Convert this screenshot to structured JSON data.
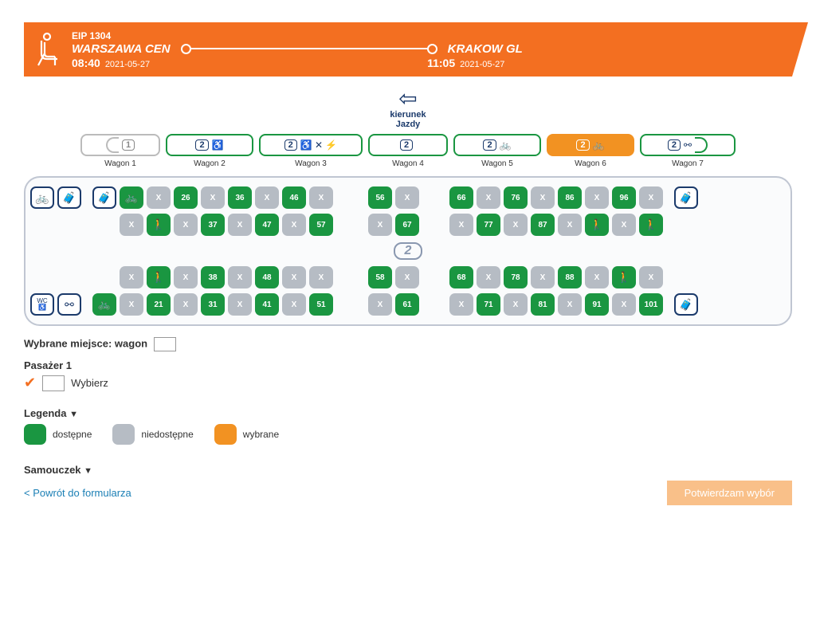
{
  "header": {
    "train": "EIP 1304",
    "origin": "WARSZAWA CEN",
    "dest": "KRAKOW GL",
    "dep_time": "08:40",
    "dep_date": "2021-05-27",
    "arr_time": "11:05",
    "arr_date": "2021-05-27"
  },
  "direction": {
    "line1": "kierunek",
    "line2": "Jazdy"
  },
  "wagons": [
    {
      "label": "Wagon 1",
      "cls": "1",
      "icons": ""
    },
    {
      "label": "Wagon 2",
      "cls": "2",
      "icons": "♿"
    },
    {
      "label": "Wagon 3",
      "cls": "2",
      "icons": "♿ ✕ ⚡"
    },
    {
      "label": "Wagon 4",
      "cls": "2",
      "icons": ""
    },
    {
      "label": "Wagon 5",
      "cls": "2",
      "icons": "🚲"
    },
    {
      "label": "Wagon 6",
      "cls": "2",
      "icons": "🚲"
    },
    {
      "label": "Wagon 7",
      "cls": "2",
      "icons": "⚯"
    }
  ],
  "selected_wagon_index": 5,
  "seats": {
    "row1": [
      {
        "t": "cap",
        "i": "🚲"
      },
      {
        "t": "cap",
        "i": "🧳"
      },
      {
        "t": "sp"
      },
      {
        "t": "cap",
        "i": "🧳"
      },
      {
        "t": "a",
        "i": "🚲"
      },
      {
        "t": "x"
      },
      {
        "t": "a",
        "n": "26"
      },
      {
        "t": "x"
      },
      {
        "t": "a",
        "n": "36"
      },
      {
        "t": "x"
      },
      {
        "t": "a",
        "n": "46"
      },
      {
        "t": "x"
      },
      {
        "t": "gap"
      },
      {
        "t": "a",
        "n": "56"
      },
      {
        "t": "x"
      },
      {
        "t": "e"
      },
      {
        "t": "a",
        "n": "66"
      },
      {
        "t": "x"
      },
      {
        "t": "a",
        "n": "76"
      },
      {
        "t": "x"
      },
      {
        "t": "a",
        "n": "86"
      },
      {
        "t": "x"
      },
      {
        "t": "a",
        "n": "96"
      },
      {
        "t": "x"
      },
      {
        "t": "sp"
      },
      {
        "t": "cap",
        "i": "🧳"
      }
    ],
    "row2": [
      {
        "t": "e"
      },
      {
        "t": "e"
      },
      {
        "t": "sp"
      },
      {
        "t": "e"
      },
      {
        "t": "x"
      },
      {
        "t": "a",
        "i": "🚶"
      },
      {
        "t": "x"
      },
      {
        "t": "a",
        "n": "37"
      },
      {
        "t": "x"
      },
      {
        "t": "a",
        "n": "47"
      },
      {
        "t": "x"
      },
      {
        "t": "a",
        "n": "57"
      },
      {
        "t": "gap"
      },
      {
        "t": "x"
      },
      {
        "t": "a",
        "n": "67"
      },
      {
        "t": "e"
      },
      {
        "t": "x"
      },
      {
        "t": "a",
        "n": "77"
      },
      {
        "t": "x"
      },
      {
        "t": "a",
        "n": "87"
      },
      {
        "t": "x"
      },
      {
        "t": "a",
        "i": "🚶"
      },
      {
        "t": "x"
      },
      {
        "t": "a",
        "i": "🚶"
      },
      {
        "t": "sp"
      },
      {
        "t": "e"
      }
    ],
    "row3": [
      {
        "t": "e"
      },
      {
        "t": "e"
      },
      {
        "t": "sp"
      },
      {
        "t": "e"
      },
      {
        "t": "x"
      },
      {
        "t": "a",
        "i": "🚶"
      },
      {
        "t": "x"
      },
      {
        "t": "a",
        "n": "38"
      },
      {
        "t": "x"
      },
      {
        "t": "a",
        "n": "48"
      },
      {
        "t": "x"
      },
      {
        "t": "x"
      },
      {
        "t": "gap"
      },
      {
        "t": "a",
        "n": "58"
      },
      {
        "t": "x"
      },
      {
        "t": "e"
      },
      {
        "t": "a",
        "n": "68"
      },
      {
        "t": "x"
      },
      {
        "t": "a",
        "n": "78"
      },
      {
        "t": "x"
      },
      {
        "t": "a",
        "n": "88"
      },
      {
        "t": "x"
      },
      {
        "t": "a",
        "i": "🚶"
      },
      {
        "t": "x"
      },
      {
        "t": "sp"
      },
      {
        "t": "e"
      }
    ],
    "row4": [
      {
        "t": "cap",
        "i": "WC"
      },
      {
        "t": "cap",
        "i": "⚯"
      },
      {
        "t": "sp"
      },
      {
        "t": "a",
        "i": "🚲"
      },
      {
        "t": "x"
      },
      {
        "t": "a",
        "n": "21"
      },
      {
        "t": "x"
      },
      {
        "t": "a",
        "n": "31"
      },
      {
        "t": "x"
      },
      {
        "t": "a",
        "n": "41"
      },
      {
        "t": "x"
      },
      {
        "t": "a",
        "n": "51"
      },
      {
        "t": "gap"
      },
      {
        "t": "x"
      },
      {
        "t": "a",
        "n": "61"
      },
      {
        "t": "e"
      },
      {
        "t": "x"
      },
      {
        "t": "a",
        "n": "71"
      },
      {
        "t": "x"
      },
      {
        "t": "a",
        "n": "81"
      },
      {
        "t": "x"
      },
      {
        "t": "a",
        "n": "91"
      },
      {
        "t": "x"
      },
      {
        "t": "a",
        "n": "101"
      },
      {
        "t": "sp"
      },
      {
        "t": "cap",
        "i": "🧳"
      }
    ]
  },
  "aisle_class": "2",
  "below": {
    "selected_label": "Wybrane miejsce: wagon",
    "passenger_hdr": "Pasażer 1",
    "choose": "Wybierz",
    "legend_hdr": "Legenda",
    "leg_a": "dostępne",
    "leg_b": "niedostępne",
    "leg_c": "wybrane",
    "tutorial": "Samouczek"
  },
  "footer": {
    "back": "< Powrót do formularza",
    "confirm": "Potwierdzam wybór"
  },
  "colors": {
    "brand": "#f36f21",
    "available": "#1a9641",
    "taken": "#b6bcc4",
    "selected": "#f29222",
    "navy": "#1b3a6b"
  }
}
